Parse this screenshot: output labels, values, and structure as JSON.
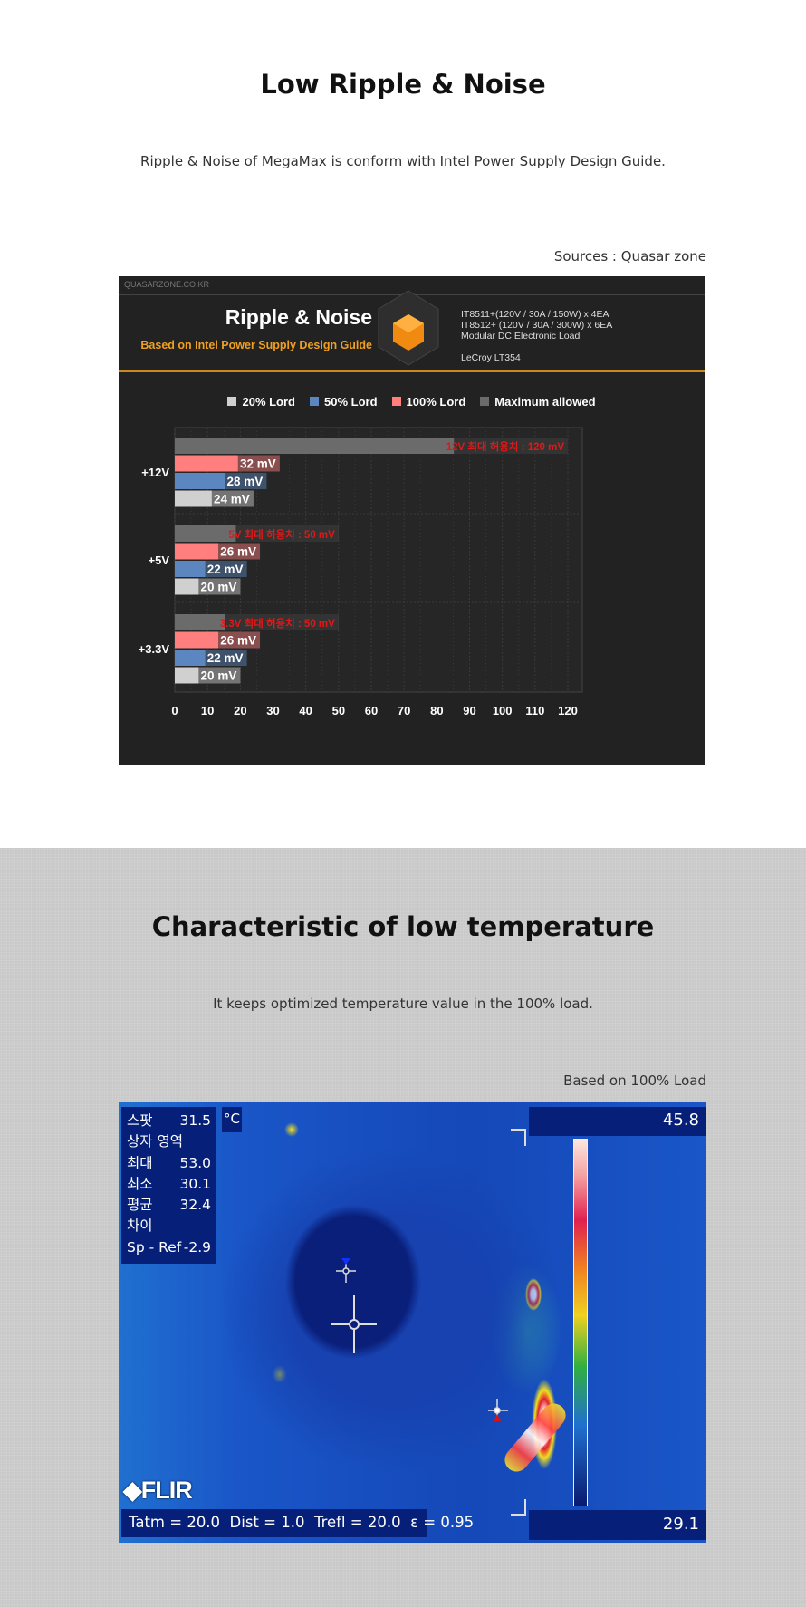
{
  "section1": {
    "title": "Low Ripple & Noise",
    "subtitle": "Ripple & Noise of MegaMax is  conform with Intel Power Supply Design Guide.",
    "source": "Sources : Quasar zone"
  },
  "chart_header": {
    "watermark": "QUASARZONE.CO.KR",
    "title": "Ripple & Noise",
    "subtitle": "Based on Intel Power Supply Design Guide",
    "equipment": [
      "IT8511+(120V / 30A / 150W) x 4EA",
      "IT8512+ (120V / 30A / 300W) x 6EA",
      "Modular DC Electronic Load"
    ],
    "scope": "LeCroy LT354",
    "accent": "#f0a020"
  },
  "chart_data": {
    "type": "bar",
    "orientation": "horizontal",
    "grid": true,
    "legend_placement": "top",
    "categories": [
      "+12V",
      "+5V",
      "+3.3V"
    ],
    "xlim": [
      0,
      120
    ],
    "xticks": [
      0,
      10,
      20,
      30,
      40,
      50,
      60,
      70,
      80,
      90,
      100,
      110,
      120
    ],
    "series": [
      {
        "name": "Maximum allowed",
        "color": "#6b6b6b",
        "values": [
          120,
          50,
          50
        ],
        "labels": [
          "12V 최대 허용치 : 120 mV",
          "5V 최대 허용치 : 50 mV",
          "3.3V 최대 허용치 : 50 mV"
        ]
      },
      {
        "name": "100% Lord",
        "color": "#ff7f7f",
        "values": [
          32,
          26,
          26
        ],
        "labels": [
          "32 mV",
          "26 mV",
          "26 mV"
        ]
      },
      {
        "name": "50% Lord",
        "color": "#5b86bf",
        "values": [
          28,
          22,
          22
        ],
        "labels": [
          "28 mV",
          "22 mV",
          "22 mV"
        ]
      },
      {
        "name": "20% Lord",
        "color": "#d0d0d0",
        "values": [
          24,
          20,
          20
        ],
        "labels": [
          "24 mV",
          "20 mV",
          "20 mV"
        ]
      }
    ],
    "legend": [
      {
        "name": "20% Lord",
        "color": "#d0d0d0"
      },
      {
        "name": "50% Lord",
        "color": "#5b86bf"
      },
      {
        "name": "100% Lord",
        "color": "#ff7f7f"
      },
      {
        "name": "Maximum allowed",
        "color": "#6b6b6b"
      }
    ]
  },
  "section2": {
    "title": "Characteristic of low temperature",
    "subtitle": "It keeps optimized temperature value in the 100% load.",
    "note": "Based on 100% Load"
  },
  "thermal": {
    "readouts": [
      {
        "label": "스팟",
        "value": "31.5"
      },
      {
        "label": "상자 영역",
        "value": ""
      },
      {
        "label": "최대",
        "value": "53.0"
      },
      {
        "label": "최소",
        "value": "30.1"
      },
      {
        "label": "평균",
        "value": "32.4"
      },
      {
        "label": "차이",
        "value": ""
      },
      {
        "label": "Sp  - Ref",
        "value": "-2.9"
      }
    ],
    "unit": "°C",
    "scale_max": "45.8",
    "scale_min": "29.1",
    "brand": "FLIR",
    "params": "Tatm = 20.0  Dist = 1.0  Trefl = 20.0  ε = 0.95"
  }
}
